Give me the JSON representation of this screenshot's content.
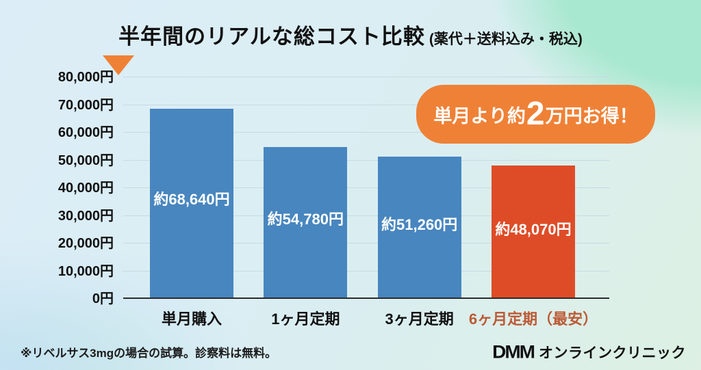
{
  "title": {
    "main": "半年間のリアルな総コスト比較",
    "sub": "(薬代＋送料込み・税込)"
  },
  "chart_data": {
    "type": "bar",
    "categories": [
      "単月購入",
      "1ヶ月定期",
      "3ヶ月定期",
      "6ヶ月定期（最安）"
    ],
    "values": [
      68640,
      54780,
      51260,
      48070
    ],
    "value_labels": [
      "約68,640円",
      "約54,780円",
      "約51,260円",
      "約48,070円"
    ],
    "bar_colors": [
      "#4886bf",
      "#4886bf",
      "#4886bf",
      "#de4c27"
    ],
    "category_colors": [
      "#111111",
      "#111111",
      "#111111",
      "#bc5a35"
    ],
    "ylim": [
      0,
      80000
    ],
    "ytick_labels": [
      "0円",
      "10,000円",
      "20,000円",
      "30,000円",
      "40,000円",
      "50,000円",
      "60,000円",
      "70,000円",
      "80,000円"
    ],
    "grid": true,
    "legend": false,
    "title": "半年間のリアルな総コスト比較 (薬代＋送料込み・税込)",
    "xlabel": "",
    "ylabel": ""
  },
  "annotation": {
    "prefix": "単月より約",
    "big": "2",
    "suffix": "万円お得！",
    "color": "#ef8136"
  },
  "footer": {
    "note": "※リベルサス3mgの場合の試算。診察料は無料。",
    "logo_dmm": "DMM",
    "logo_text": "オンラインクリニック"
  }
}
